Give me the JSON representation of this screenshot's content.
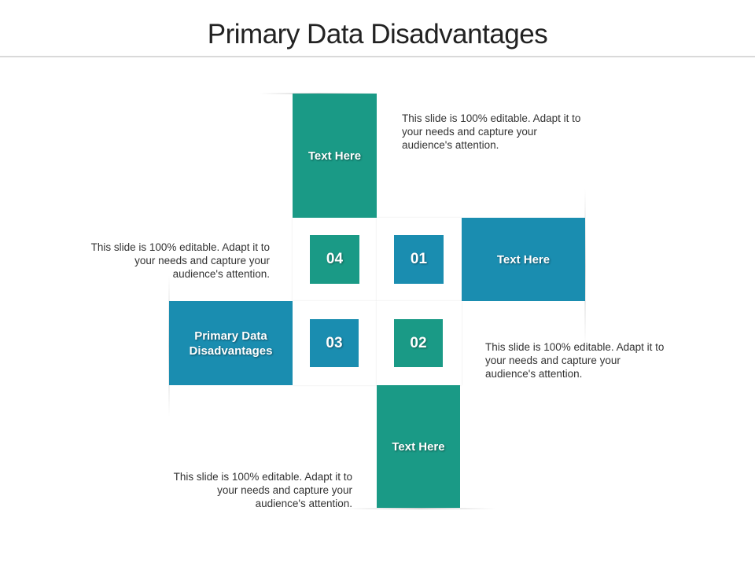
{
  "title": "Primary Data Disadvantages",
  "colors": {
    "teal": "#1a9a86",
    "blue": "#1a8db0"
  },
  "center_label": "Primary Data Disadvantages",
  "items": [
    {
      "number": "01",
      "label": "Text Here",
      "description": "This slide is 100% editable. Adapt it to your needs and capture your audience's attention."
    },
    {
      "number": "02",
      "label": "Text Here",
      "description": "This slide is 100% editable. Adapt it to your needs and capture your audience's attention."
    },
    {
      "number": "03",
      "label": "Primary Data Disadvantages",
      "description": "This slide is 100% editable. Adapt it to your needs and capture your audience's attention."
    },
    {
      "number": "04",
      "label": "Text Here",
      "description": "This slide is 100% editable. Adapt it to your needs and capture your audience's attention."
    }
  ]
}
